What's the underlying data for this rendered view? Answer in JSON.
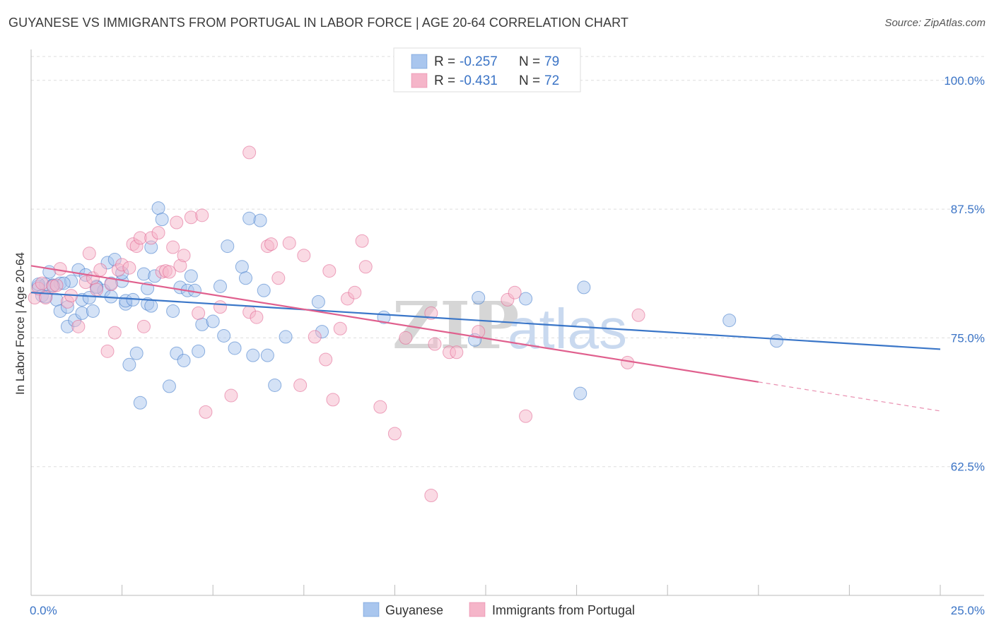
{
  "title": "GUYANESE VS IMMIGRANTS FROM PORTUGAL IN LABOR FORCE | AGE 20-64 CORRELATION CHART",
  "source": "Source: ZipAtlas.com",
  "watermark": "ZIPatlas",
  "colors": {
    "blue_fill": "#a9c6ee",
    "blue_line": "#3a76c8",
    "pink_fill": "#f5b5c9",
    "pink_line": "#e0608e",
    "tick_text": "#3b74c6",
    "grid": "#dddddd"
  },
  "legend": {
    "r_label": "R =",
    "n_label": "N =",
    "rows": [
      {
        "r": "-0.257",
        "n": "79",
        "series": "Guyanese"
      },
      {
        "r": "-0.431",
        "n": "72",
        "series": "Immigrants from Portugal"
      }
    ]
  },
  "chart_data": {
    "type": "scatter",
    "title": "GUYANESE VS IMMIGRANTS FROM PORTUGAL IN LABOR FORCE | AGE 20-64 CORRELATION CHART",
    "xlabel": "",
    "ylabel": "In Labor Force | Age 20-64",
    "xlim": [
      0,
      25
    ],
    "ylim": [
      50,
      103
    ],
    "x_tick_labels": [
      "0.0%",
      "25.0%"
    ],
    "y_ticks": [
      62.5,
      75.0,
      87.5,
      100.0
    ],
    "y_tick_labels": [
      "62.5%",
      "75.0%",
      "87.5%",
      "100.0%"
    ],
    "grid": true,
    "legend_position": "top-center",
    "series": [
      {
        "name": "Guyanese",
        "r": -0.257,
        "n": 79,
        "trend": {
          "x": [
            0,
            25
          ],
          "y": [
            79.4,
            73.9
          ],
          "dashed_from": null
        },
        "points": [
          [
            0.2,
            80.0
          ],
          [
            0.3,
            79.1
          ],
          [
            0.4,
            80.2
          ],
          [
            0.5,
            81.4
          ],
          [
            0.6,
            80.1
          ],
          [
            0.7,
            78.7
          ],
          [
            0.8,
            80.3
          ],
          [
            0.8,
            77.6
          ],
          [
            1.0,
            76.1
          ],
          [
            1.0,
            78.0
          ],
          [
            1.1,
            80.5
          ],
          [
            1.2,
            76.7
          ],
          [
            1.3,
            81.6
          ],
          [
            1.4,
            78.7
          ],
          [
            1.4,
            77.4
          ],
          [
            1.5,
            81.1
          ],
          [
            1.6,
            78.9
          ],
          [
            1.7,
            77.6
          ],
          [
            1.8,
            80.0
          ],
          [
            2.0,
            79.6
          ],
          [
            2.1,
            82.3
          ],
          [
            2.2,
            80.3
          ],
          [
            2.2,
            79.0
          ],
          [
            2.3,
            82.6
          ],
          [
            2.5,
            80.5
          ],
          [
            2.5,
            81.3
          ],
          [
            2.6,
            78.3
          ],
          [
            2.6,
            78.6
          ],
          [
            2.7,
            72.4
          ],
          [
            2.8,
            78.7
          ],
          [
            2.9,
            73.5
          ],
          [
            3.0,
            68.7
          ],
          [
            3.1,
            81.2
          ],
          [
            3.2,
            79.8
          ],
          [
            3.2,
            78.3
          ],
          [
            3.3,
            78.1
          ],
          [
            3.3,
            83.8
          ],
          [
            3.4,
            81.0
          ],
          [
            3.5,
            87.6
          ],
          [
            3.6,
            86.5
          ],
          [
            3.8,
            70.3
          ],
          [
            3.9,
            77.6
          ],
          [
            4.0,
            73.5
          ],
          [
            4.1,
            79.9
          ],
          [
            4.2,
            72.8
          ],
          [
            4.3,
            79.6
          ],
          [
            4.4,
            81.0
          ],
          [
            4.5,
            79.6
          ],
          [
            4.6,
            73.7
          ],
          [
            4.7,
            76.3
          ],
          [
            5.0,
            76.6
          ],
          [
            5.2,
            80.0
          ],
          [
            5.3,
            75.2
          ],
          [
            5.4,
            83.9
          ],
          [
            5.6,
            74.0
          ],
          [
            5.8,
            81.9
          ],
          [
            5.9,
            80.8
          ],
          [
            6.0,
            86.6
          ],
          [
            6.1,
            73.3
          ],
          [
            6.3,
            86.4
          ],
          [
            6.4,
            79.6
          ],
          [
            6.5,
            73.3
          ],
          [
            6.7,
            70.4
          ],
          [
            7.0,
            75.1
          ],
          [
            7.9,
            78.5
          ],
          [
            8.0,
            75.6
          ],
          [
            9.7,
            77.0
          ],
          [
            12.3,
            78.9
          ],
          [
            12.2,
            74.8
          ],
          [
            13.6,
            78.8
          ],
          [
            15.1,
            69.6
          ],
          [
            15.2,
            79.9
          ],
          [
            19.2,
            76.7
          ],
          [
            20.5,
            74.7
          ],
          [
            0.2,
            80.2
          ],
          [
            0.4,
            79.0
          ],
          [
            0.6,
            80.1
          ],
          [
            0.9,
            80.3
          ],
          [
            1.8,
            79.9
          ]
        ]
      },
      {
        "name": "Immigrants from Portugal",
        "r": -0.431,
        "n": 72,
        "trend": {
          "x": [
            0,
            25
          ],
          "y": [
            82.0,
            67.9
          ],
          "dashed_from": 20.0
        },
        "points": [
          [
            0.1,
            78.9
          ],
          [
            0.2,
            79.8
          ],
          [
            0.3,
            80.3
          ],
          [
            0.4,
            78.9
          ],
          [
            0.6,
            80.0
          ],
          [
            0.7,
            80.1
          ],
          [
            0.8,
            81.7
          ],
          [
            1.0,
            78.5
          ],
          [
            1.1,
            79.1
          ],
          [
            1.3,
            76.1
          ],
          [
            1.5,
            80.4
          ],
          [
            1.6,
            83.2
          ],
          [
            1.7,
            80.8
          ],
          [
            1.8,
            79.7
          ],
          [
            1.9,
            81.6
          ],
          [
            2.1,
            73.7
          ],
          [
            2.2,
            80.2
          ],
          [
            2.3,
            75.5
          ],
          [
            2.4,
            81.6
          ],
          [
            2.5,
            82.1
          ],
          [
            2.7,
            81.8
          ],
          [
            2.8,
            84.1
          ],
          [
            2.9,
            83.9
          ],
          [
            3.0,
            84.7
          ],
          [
            3.1,
            76.1
          ],
          [
            3.3,
            84.7
          ],
          [
            3.5,
            85.2
          ],
          [
            3.6,
            81.4
          ],
          [
            3.7,
            81.5
          ],
          [
            3.8,
            81.4
          ],
          [
            3.9,
            83.8
          ],
          [
            4.0,
            86.2
          ],
          [
            4.1,
            82.0
          ],
          [
            4.2,
            83.0
          ],
          [
            4.4,
            86.7
          ],
          [
            4.6,
            77.4
          ],
          [
            4.7,
            86.9
          ],
          [
            4.8,
            67.8
          ],
          [
            5.2,
            78.0
          ],
          [
            5.5,
            69.4
          ],
          [
            6.0,
            77.5
          ],
          [
            6.0,
            93.0
          ],
          [
            6.2,
            77.0
          ],
          [
            6.5,
            83.9
          ],
          [
            6.6,
            84.1
          ],
          [
            6.8,
            80.8
          ],
          [
            7.1,
            84.2
          ],
          [
            7.4,
            70.4
          ],
          [
            7.5,
            83.0
          ],
          [
            7.8,
            75.1
          ],
          [
            8.1,
            72.9
          ],
          [
            8.2,
            81.5
          ],
          [
            8.3,
            69.0
          ],
          [
            8.5,
            75.9
          ],
          [
            8.7,
            78.8
          ],
          [
            8.9,
            79.4
          ],
          [
            9.1,
            84.4
          ],
          [
            9.2,
            81.9
          ],
          [
            9.6,
            68.3
          ],
          [
            10.0,
            65.7
          ],
          [
            10.3,
            75.0
          ],
          [
            11.0,
            77.4
          ],
          [
            11.1,
            74.4
          ],
          [
            11.0,
            59.7
          ],
          [
            11.5,
            73.6
          ],
          [
            11.7,
            73.6
          ],
          [
            12.3,
            75.6
          ],
          [
            13.1,
            78.7
          ],
          [
            13.6,
            67.4
          ],
          [
            13.3,
            79.4
          ],
          [
            16.7,
            77.2
          ],
          [
            16.4,
            72.6
          ]
        ]
      }
    ]
  },
  "bottom_legend": {
    "items": [
      "Guyanese",
      "Immigrants from Portugal"
    ]
  }
}
